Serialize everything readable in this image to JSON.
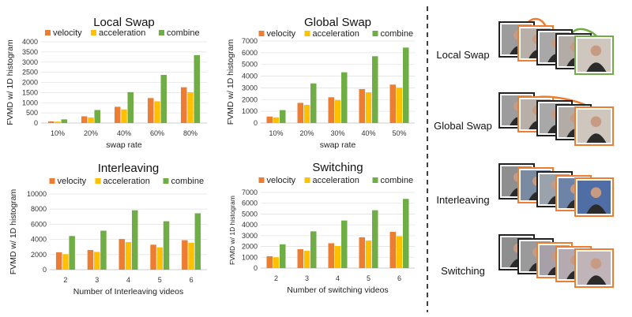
{
  "colors": {
    "velocity": "#ED7D31",
    "acceleration": "#FFC000",
    "combine": "#70AD47",
    "frame_border": "#ED7D31",
    "frame_border_alt": "#70AD47"
  },
  "legend": [
    "velocity",
    "acceleration",
    "combine"
  ],
  "chart_data": [
    {
      "type": "bar",
      "title": "Local Swap",
      "xlabel": "swap rate",
      "ylabel": "FVMD w/ 1D histogram",
      "categories": [
        "10%",
        "20%",
        "40%",
        "60%",
        "80%"
      ],
      "ylim": [
        0,
        4000
      ],
      "yticks": [
        "0",
        "500",
        "1000",
        "1500",
        "2000",
        "2500",
        "3000",
        "3500",
        "4000"
      ],
      "series": [
        {
          "name": "velocity",
          "values": [
            80,
            330,
            800,
            1230,
            1760
          ]
        },
        {
          "name": "acceleration",
          "values": [
            70,
            270,
            670,
            1070,
            1510
          ]
        },
        {
          "name": "combine",
          "values": [
            180,
            640,
            1520,
            2370,
            3340
          ]
        }
      ]
    },
    {
      "type": "bar",
      "title": "Global Swap",
      "xlabel": "swap rate",
      "ylabel": "FVMD w/ 1D histogram",
      "categories": [
        "10%",
        "20%",
        "30%",
        "40%",
        "50%"
      ],
      "ylim": [
        0,
        7000
      ],
      "yticks": [
        "0",
        "1000",
        "2000",
        "3000",
        "4000",
        "5000",
        "6000",
        "7000"
      ],
      "series": [
        {
          "name": "velocity",
          "values": [
            550,
            1720,
            2200,
            2900,
            3280
          ]
        },
        {
          "name": "acceleration",
          "values": [
            480,
            1550,
            1960,
            2620,
            3010
          ]
        },
        {
          "name": "combine",
          "values": [
            1100,
            3380,
            4330,
            5700,
            6440
          ]
        }
      ]
    },
    {
      "type": "bar",
      "title": "Interleaving",
      "xlabel": "Number of Interleaving videos",
      "ylabel": "FVMD w/ 1D histogram",
      "categories": [
        "2",
        "3",
        "4",
        "5",
        "6"
      ],
      "ylim": [
        0,
        10000
      ],
      "yticks": [
        "0",
        "2000",
        "4000",
        "6000",
        "8000",
        "10000"
      ],
      "series": [
        {
          "name": "velocity",
          "values": [
            2300,
            2600,
            4050,
            3300,
            3900
          ]
        },
        {
          "name": "acceleration",
          "values": [
            2050,
            2350,
            3650,
            2950,
            3550
          ]
        },
        {
          "name": "combine",
          "values": [
            4450,
            5150,
            7850,
            6400,
            7450
          ]
        }
      ]
    },
    {
      "type": "bar",
      "title": "Switching",
      "xlabel": "Number of switching videos",
      "ylabel": "FVMD w/ 1D histogram",
      "categories": [
        "2",
        "3",
        "4",
        "5",
        "6"
      ],
      "ylim": [
        0,
        7000
      ],
      "yticks": [
        "0",
        "1000",
        "2000",
        "3000",
        "4000",
        "5000",
        "6000",
        "7000"
      ],
      "series": [
        {
          "name": "velocity",
          "values": [
            1100,
            1750,
            2300,
            2850,
            3350
          ]
        },
        {
          "name": "acceleration",
          "values": [
            1000,
            1600,
            2050,
            2550,
            2950
          ]
        },
        {
          "name": "combine",
          "values": [
            2200,
            3400,
            4400,
            5350,
            6400
          ]
        }
      ]
    }
  ],
  "side_labels": [
    "Local Swap",
    "Global Swap",
    "Interleaving",
    "Switching"
  ]
}
